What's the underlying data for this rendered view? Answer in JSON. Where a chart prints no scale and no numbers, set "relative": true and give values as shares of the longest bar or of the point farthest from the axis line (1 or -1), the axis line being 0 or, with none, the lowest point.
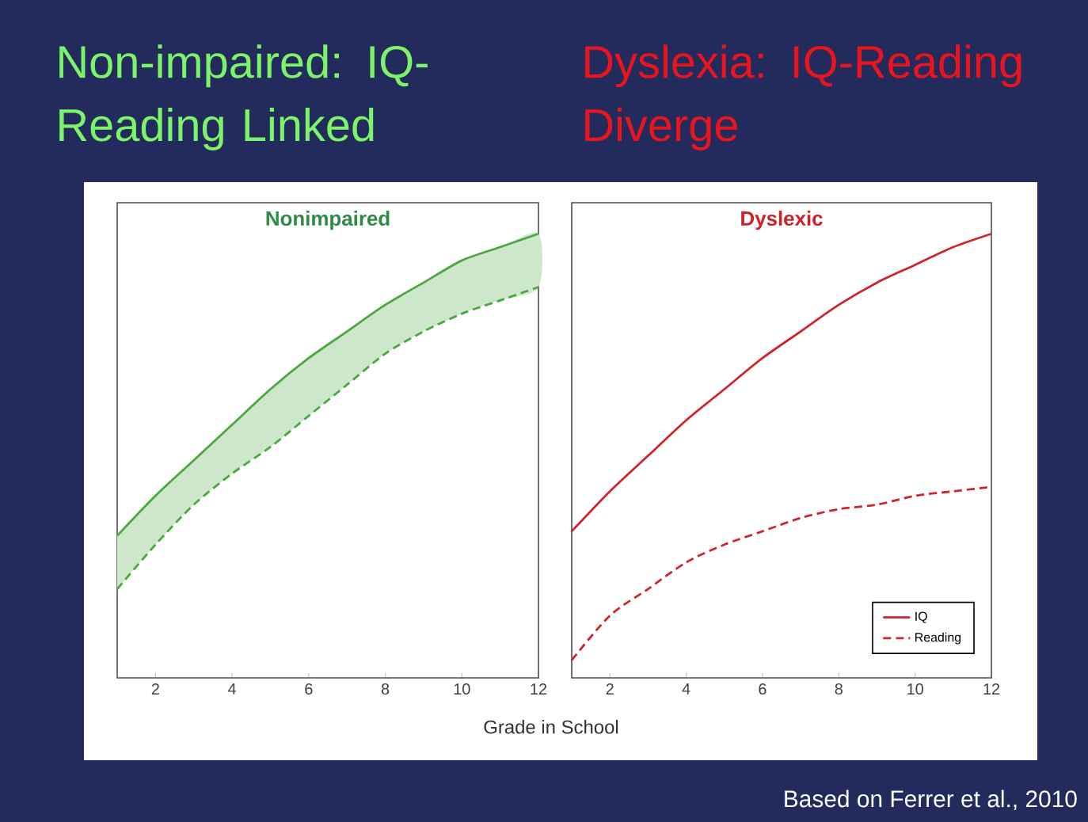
{
  "chart_data": [
    {
      "type": "line",
      "relative": true,
      "subtitle": "Non-impaired: IQ-Reading Linked",
      "title": "Nonimpaired",
      "x": [
        1,
        2,
        3,
        4,
        5,
        6,
        7,
        8,
        9,
        10,
        11,
        12
      ],
      "xlim": [
        1,
        12
      ],
      "xticks": [
        2,
        4,
        6,
        8,
        10,
        12
      ],
      "series": [
        {
          "color": "#4aa83f",
          "line_style": "solid",
          "values": [
            0.32,
            0.41,
            0.49,
            0.57,
            0.65,
            0.72,
            0.78,
            0.84,
            0.89,
            0.94,
            0.97,
            1
          ],
          "upper": [
            0.32,
            0.41,
            0.49,
            0.57,
            0.65,
            0.72,
            0.78,
            0.84,
            0.89,
            0.94,
            0.97,
            1
          ],
          "lower": [
            0.2,
            0.3,
            0.39,
            0.46,
            0.52,
            0.59,
            0.66,
            0.73,
            0.78,
            0.82,
            0.85,
            0.88
          ]
        },
        {
          "color": "#4aa83f",
          "line_style": "dashed",
          "values": [
            0.2,
            0.3,
            0.39,
            0.46,
            0.52,
            0.59,
            0.66,
            0.73,
            0.78,
            0.82,
            0.85,
            0.88
          ]
        }
      ]
    },
    {
      "type": "line",
      "relative": true,
      "subtitle": "Dyslexia: IQ-Reading Diverge",
      "title": "Dyslexic",
      "xlabel": "Grade in School",
      "x": [
        1,
        2,
        3,
        4,
        5,
        6,
        7,
        8,
        9,
        10,
        11,
        12
      ],
      "xlim": [
        1,
        12
      ],
      "xticks": [
        2,
        4,
        6,
        8,
        10,
        12
      ],
      "legend": "bottom right",
      "annotations": [
        "Based on Ferrer et al., 2010"
      ],
      "series": [
        {
          "name": "IQ",
          "color": "#d0242b",
          "line_style": "solid",
          "values": [
            0.33,
            0.42,
            0.5,
            0.58,
            0.65,
            0.72,
            0.78,
            0.84,
            0.89,
            0.93,
            0.97,
            1
          ]
        },
        {
          "name": "Reading",
          "color": "#d0242b",
          "line_style": "dashed",
          "values": [
            0.04,
            0.14,
            0.2,
            0.26,
            0.3,
            0.33,
            0.36,
            0.38,
            0.39,
            0.41,
            0.42,
            0.43
          ]
        }
      ]
    }
  ]
}
